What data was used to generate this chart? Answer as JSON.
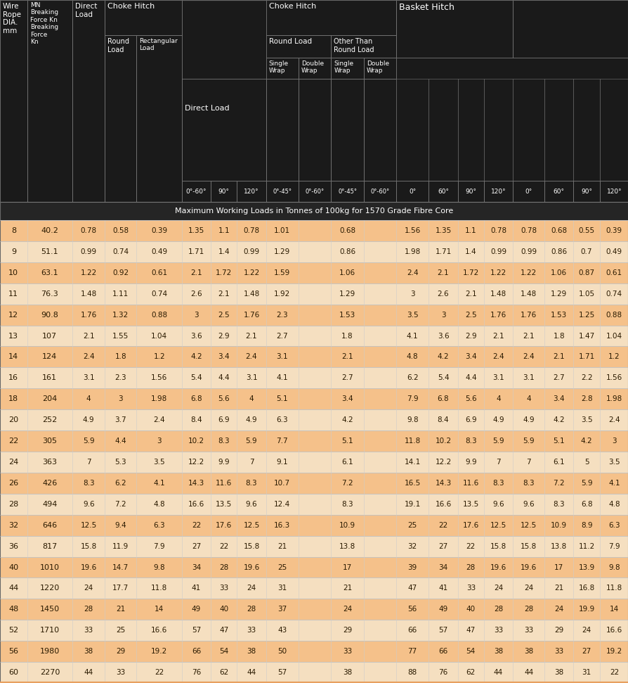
{
  "subtitle": "Maximum Working Loads in Tonnes of 100kg for 1570 Grade Fibre Core",
  "bg_color": "#1a1a1a",
  "header_bg": "#1a1a1a",
  "row_colors": [
    "#f5c18a",
    "#f5dfc0"
  ],
  "border_color": "#888888",
  "rows": [
    [
      8,
      40.2,
      0.78,
      0.58,
      0.39,
      1.35,
      1.1,
      0.78,
      1.01,
      0.68,
      1.56,
      1.35,
      1.1,
      0.78,
      0.78,
      0.68,
      0.55,
      0.39
    ],
    [
      9,
      51.1,
      0.99,
      0.74,
      0.49,
      1.71,
      1.4,
      0.99,
      1.29,
      0.86,
      1.98,
      1.71,
      1.4,
      0.99,
      0.99,
      0.86,
      0.7,
      0.49
    ],
    [
      10,
      63.1,
      1.22,
      0.92,
      0.61,
      2.1,
      1.72,
      1.22,
      1.59,
      1.06,
      2.4,
      2.1,
      1.72,
      1.22,
      1.22,
      1.06,
      0.87,
      0.61
    ],
    [
      11,
      76.3,
      1.48,
      1.11,
      0.74,
      2.6,
      2.1,
      1.48,
      1.92,
      1.29,
      3,
      2.6,
      2.1,
      1.48,
      1.48,
      1.29,
      1.05,
      0.74
    ],
    [
      12,
      90.8,
      1.76,
      1.32,
      0.88,
      3,
      2.5,
      1.76,
      2.3,
      1.53,
      3.5,
      3,
      2.5,
      1.76,
      1.76,
      1.53,
      1.25,
      0.88
    ],
    [
      13,
      107.0,
      2.1,
      1.55,
      1.04,
      3.6,
      2.9,
      2.1,
      2.7,
      1.8,
      4.1,
      3.6,
      2.9,
      2.1,
      2.1,
      1.8,
      1.47,
      1.04
    ],
    [
      14,
      124.0,
      2.4,
      1.8,
      1.2,
      4.2,
      3.4,
      2.4,
      3.1,
      2.1,
      4.8,
      4.2,
      3.4,
      2.4,
      2.4,
      2.1,
      1.71,
      1.2
    ],
    [
      16,
      161.0,
      3.1,
      2.3,
      1.56,
      5.4,
      4.4,
      3.1,
      4.1,
      2.7,
      6.2,
      5.4,
      4.4,
      3.1,
      3.1,
      2.7,
      2.2,
      1.56
    ],
    [
      18,
      204.0,
      4,
      3,
      1.98,
      6.8,
      5.6,
      4,
      5.1,
      3.4,
      7.9,
      6.8,
      5.6,
      4,
      4,
      3.4,
      2.8,
      1.98
    ],
    [
      20,
      252.0,
      4.9,
      3.7,
      2.4,
      8.4,
      6.9,
      4.9,
      6.3,
      4.2,
      9.8,
      8.4,
      6.9,
      4.9,
      4.9,
      4.2,
      3.5,
      2.4
    ],
    [
      22,
      305.0,
      5.9,
      4.4,
      3,
      10.2,
      8.3,
      5.9,
      7.7,
      5.1,
      11.8,
      10.2,
      8.3,
      5.9,
      5.9,
      5.1,
      4.2,
      3
    ],
    [
      24,
      363.0,
      7,
      5.3,
      3.5,
      12.2,
      9.9,
      7,
      9.1,
      6.1,
      14.1,
      12.2,
      9.9,
      7,
      7,
      6.1,
      5,
      3.5
    ],
    [
      26,
      426.0,
      8.3,
      6.2,
      4.1,
      14.3,
      11.6,
      8.3,
      10.7,
      7.2,
      16.5,
      14.3,
      11.6,
      8.3,
      8.3,
      7.2,
      5.9,
      4.1
    ],
    [
      28,
      494.0,
      9.6,
      7.2,
      4.8,
      16.6,
      13.5,
      9.6,
      12.4,
      8.3,
      19.1,
      16.6,
      13.5,
      9.6,
      9.6,
      8.3,
      6.8,
      4.8
    ],
    [
      32,
      646.0,
      12.5,
      9.4,
      6.3,
      22,
      17.6,
      12.5,
      16.3,
      10.9,
      25,
      22,
      17.6,
      12.5,
      12.5,
      10.9,
      8.9,
      6.3
    ],
    [
      36,
      817.0,
      15.8,
      11.9,
      7.9,
      27,
      22,
      15.8,
      21,
      13.8,
      32,
      27,
      22,
      15.8,
      15.8,
      13.8,
      11.2,
      7.9
    ],
    [
      40,
      1010.0,
      19.6,
      14.7,
      9.8,
      34,
      28,
      19.6,
      25,
      17,
      39,
      34,
      28,
      19.6,
      19.6,
      17,
      13.9,
      9.8
    ],
    [
      44,
      1220.0,
      24,
      17.7,
      11.8,
      41,
      33,
      24,
      31,
      21,
      47,
      41,
      33,
      24,
      24,
      21,
      16.8,
      11.8
    ],
    [
      48,
      1450.0,
      28,
      21,
      14,
      49,
      40,
      28,
      37,
      24,
      56,
      49,
      40,
      28,
      28,
      24,
      19.9,
      14
    ],
    [
      52,
      1710.0,
      33,
      25,
      16.6,
      57,
      47,
      33,
      43,
      29,
      66,
      57,
      47,
      33,
      33,
      29,
      24,
      16.6
    ],
    [
      56,
      1980.0,
      38,
      29,
      19.2,
      66,
      54,
      38,
      50,
      33,
      77,
      66,
      54,
      38,
      38,
      33,
      27,
      19.2
    ],
    [
      60,
      2270.0,
      44,
      33,
      22,
      76,
      62,
      44,
      57,
      38,
      88,
      76,
      62,
      44,
      44,
      38,
      31,
      22
    ]
  ]
}
